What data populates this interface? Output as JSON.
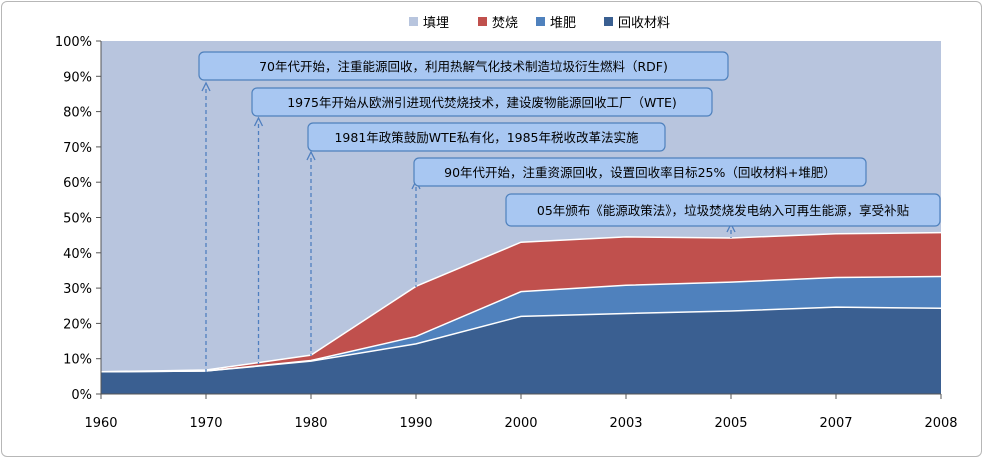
{
  "chart_data": {
    "type": "area",
    "stacked": true,
    "categories": [
      "1960",
      "1970",
      "1980",
      "1990",
      "2000",
      "2003",
      "2005",
      "2007",
      "2008"
    ],
    "ylim": [
      0,
      100
    ],
    "y_ticks": [
      "0%",
      "10%",
      "20%",
      "30%",
      "40%",
      "50%",
      "60%",
      "70%",
      "80%",
      "90%",
      "100%"
    ],
    "legend_position": "top",
    "series": [
      {
        "name": "填埋",
        "color": "#b8c5de",
        "values": [
          93.7,
          93.2,
          89,
          69.5,
          57,
          55.5,
          55.8,
          54.6,
          54.3
        ]
      },
      {
        "name": "焚烧",
        "color": "#c0504d",
        "values": [
          0,
          0.3,
          1.5,
          14.2,
          14,
          13.7,
          12.5,
          12.4,
          12.4
        ]
      },
      {
        "name": "堆肥",
        "color": "#4f81bd",
        "values": [
          0,
          0,
          0.2,
          2.1,
          7,
          8,
          8.2,
          8.4,
          9
        ]
      },
      {
        "name": "回收材料",
        "color": "#3a5f91",
        "values": [
          6.3,
          6.5,
          9.3,
          14.2,
          22,
          22.8,
          23.5,
          24.6,
          24.3
        ]
      }
    ],
    "annotations": [
      {
        "text": "70年代开始，注重能源回收，利用热解气化技术制造垃圾衍生燃料（RDF)",
        "category": "1970",
        "year": 1970
      },
      {
        "text": "1975年开始从欧洲引进现代焚烧技术，建设废物能源回收工厂（WTE)",
        "category": "1975",
        "year": 1975
      },
      {
        "text": "1981年政策鼓励WTE私有化，1985年税收改革法实施",
        "category": "1980",
        "year": 1980
      },
      {
        "text": "90年代开始，注重资源回收，设置回收率目标25%（回收材料+堆肥）",
        "category": "1990",
        "year": 1990
      },
      {
        "text": "05年颁布《能源政策法》，垃圾焚烧发电纳入可再生能源，享受补贴",
        "category": "2005",
        "year": 2005
      }
    ]
  }
}
